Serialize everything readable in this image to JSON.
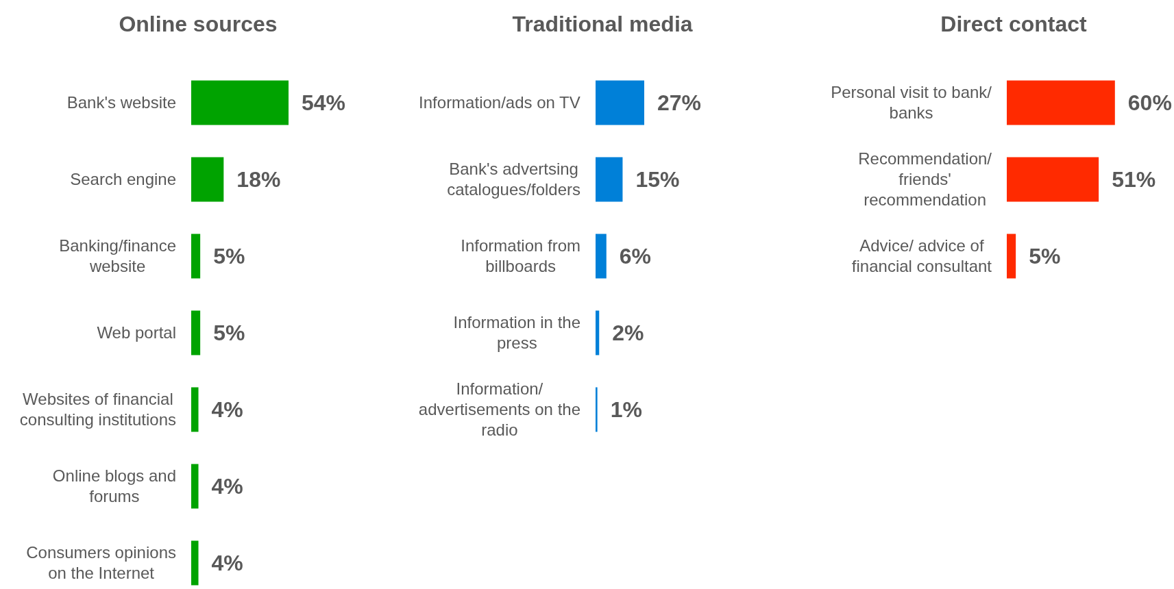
{
  "chart_data": [
    {
      "type": "bar",
      "orientation": "horizontal",
      "title": "Online sources",
      "categories": [
        "Bank's website",
        "Search engine",
        "Banking/finance website",
        "Web portal",
        "Websites of financial consulting institutions",
        "Online blogs and forums",
        "Consumers opinions on the Internet"
      ],
      "values": [
        54,
        18,
        5,
        5,
        4,
        4,
        4
      ],
      "value_labels": [
        "54%",
        "18%",
        "5%",
        "5%",
        "4%",
        "4%",
        "4%"
      ],
      "color": "#00a300"
    },
    {
      "type": "bar",
      "orientation": "horizontal",
      "title": "Traditional media",
      "categories": [
        "Information/ads on TV",
        "Bank's advertsing catalogues/folders",
        "Information from billboards",
        "Information in the press",
        "Information/ advertisements on the radio"
      ],
      "values": [
        27,
        15,
        6,
        2,
        1
      ],
      "value_labels": [
        "27%",
        "15%",
        "6%",
        "2%",
        "1%"
      ],
      "color": "#0080d8"
    },
    {
      "type": "bar",
      "orientation": "horizontal",
      "title": "Direct contact",
      "categories": [
        "Personal visit to bank/ banks",
        "Recommendation/ friends' recommendation",
        "Advice/ advice of financial consultant"
      ],
      "values": [
        60,
        51,
        5
      ],
      "value_labels": [
        "60%",
        "51%",
        "5%"
      ],
      "color": "#ff2a00"
    }
  ]
}
